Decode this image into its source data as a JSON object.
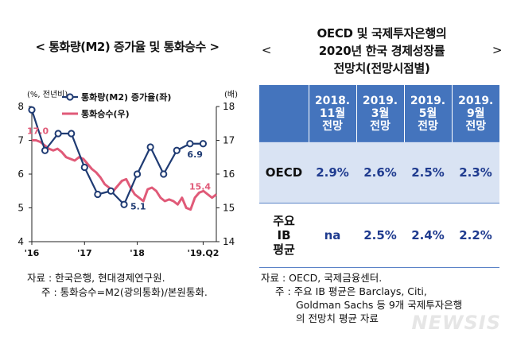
{
  "left": {
    "title": "< 통화량(M2) 증가율 및 통화승수 >",
    "source_lines": [
      "자료 : 한국은행, 현대경제연구원.",
      "주 : 통화승수=M2(광의통화)/본원통화."
    ]
  },
  "right": {
    "title_lines": [
      "OECD 및 국제투자은행의",
      "2020년 한국 경제성장률",
      "전망치(전망시점별)"
    ],
    "bracket_open": "<",
    "bracket_close": ">",
    "table": {
      "headers": [
        {
          "l1": "2018.",
          "l2": "11월",
          "l3": "전망"
        },
        {
          "l1": "2019.",
          "l2": "3월",
          "l3": "전망"
        },
        {
          "l1": "2019.",
          "l2": "5월",
          "l3": "전망"
        },
        {
          "l1": "2019.",
          "l2": "9월",
          "l3": "전망"
        }
      ],
      "rows": [
        {
          "label_lines": [
            "OECD"
          ],
          "values": [
            "2.9%",
            "2.6%",
            "2.5%",
            "2.3%"
          ]
        },
        {
          "label_lines": [
            "주요",
            "IB",
            "평균"
          ],
          "values": [
            "na",
            "2.5%",
            "2.4%",
            "2.2%"
          ]
        }
      ]
    },
    "source_lines": [
      "자료 : OECD, 국제금융센터.",
      "주 : 주요 IB 평균은 Barclays, Citi,",
      "Goldman Sachs 등 9개 국제투자은행",
      "의 전망치 평균 자료"
    ]
  },
  "watermark": "NEWSIS",
  "chart_data": {
    "type": "line",
    "left_axis_unit": "(%, 전년비)",
    "right_axis_unit": "(배)",
    "yleft_lim": [
      4,
      8
    ],
    "yright_lim": [
      14,
      18
    ],
    "yleft_ticks": [
      4,
      5,
      6,
      7,
      8
    ],
    "yright_ticks": [
      14,
      15,
      16,
      17,
      18
    ],
    "x_tick_labels": [
      "'16",
      "'17",
      "'18",
      "'19.Q2"
    ],
    "grid": false,
    "legend_position": "top",
    "series": [
      {
        "name": "통화량(M2) 증가율(좌)",
        "axis": "left",
        "color": "#1f3b73",
        "marker": "circle",
        "x": [
          "2016Q1",
          "2016Q2",
          "2016Q3",
          "2016Q4",
          "2017Q1",
          "2017Q2",
          "2017Q3",
          "2017Q4",
          "2018Q1",
          "2018Q2",
          "2018Q3",
          "2018Q4",
          "2019Q1",
          "2019Q2"
        ],
        "values": [
          7.9,
          6.7,
          7.2,
          7.2,
          6.2,
          5.4,
          5.5,
          5.1,
          6.0,
          6.8,
          6.0,
          6.7,
          6.9,
          6.9
        ]
      },
      {
        "name": "통화승수(우)",
        "axis": "right",
        "color": "#e05a78",
        "marker": "none",
        "x_monthly_from": "2016-01",
        "values": [
          17.0,
          17.0,
          16.95,
          16.85,
          16.75,
          16.7,
          16.75,
          16.65,
          16.5,
          16.45,
          16.4,
          16.5,
          16.45,
          16.3,
          16.15,
          16.05,
          15.9,
          15.7,
          15.6,
          15.5,
          15.65,
          15.8,
          15.85,
          15.6,
          15.4,
          15.3,
          15.2,
          15.55,
          15.6,
          15.5,
          15.3,
          15.2,
          15.25,
          15.2,
          15.1,
          15.3,
          15.0,
          14.95,
          15.3,
          15.45,
          15.5,
          15.4,
          15.3,
          15.4
        ]
      }
    ],
    "annotations": [
      {
        "series": "통화승수(우)",
        "text": "17.0"
      },
      {
        "series": "통화량(M2) 증가율(좌)",
        "text": "5.1"
      },
      {
        "series": "통화량(M2) 증가율(좌)",
        "text": "6.9"
      },
      {
        "series": "통화승수(우)",
        "text": "15.4"
      }
    ]
  }
}
